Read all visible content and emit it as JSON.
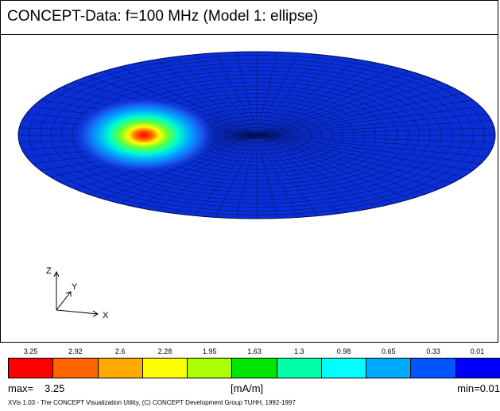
{
  "window": {
    "title": "CONCEPT-Data: f=100 MHz (Model 1: ellipse)"
  },
  "axes": {
    "x_label": "X",
    "y_label": "Y",
    "z_label": "Z"
  },
  "colorbar": {
    "tick_labels": [
      "3.25",
      "2.92",
      "2.6",
      "2.28",
      "1.95",
      "1.63",
      "1.3",
      "0.98",
      "0.65",
      "0.33",
      "0.01"
    ],
    "colors": [
      "#ff0000",
      "#ff6600",
      "#ffaa00",
      "#ffff00",
      "#aaff00",
      "#00e600",
      "#00ffaa",
      "#00ffff",
      "#00aaff",
      "#0055ff",
      "#0000ff"
    ]
  },
  "legend": {
    "max_label": "max=",
    "max_value": "3.25",
    "unit": "[mA/m]",
    "min_label": "min=0.01"
  },
  "footer": {
    "credits": "XVis 1.03 - The CONCEPT Visualization Utility, (C) CONCEPT Development Group TUHH, 1992-1997"
  },
  "colors": {
    "surface_base": "#0a2fd8",
    "mesh_line": "#001050",
    "hotspot_peak": "#ff0000"
  }
}
